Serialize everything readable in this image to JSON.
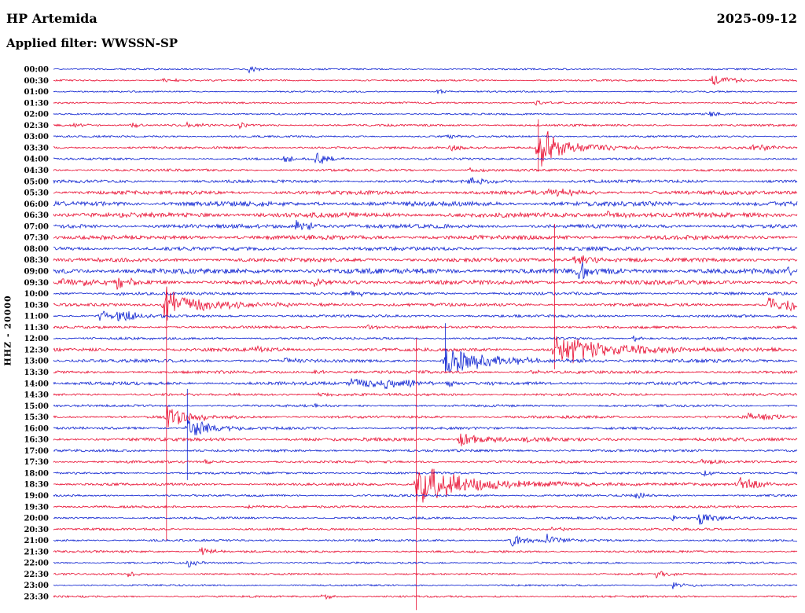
{
  "header": {
    "station": "HP Artemida",
    "date": "2025-09-12",
    "filter_label": "Applied filter: WWSSN-SP"
  },
  "axis": {
    "left_label": "HHZ - 20000"
  },
  "colors": {
    "red": "#e80c30",
    "blue": "#0a1fd0",
    "background": "#ffffff",
    "text": "#000000"
  },
  "chart_data": {
    "type": "line",
    "subtype": "helicorder-seismogram",
    "minutes_per_row": 30,
    "row_count": 48,
    "start_time": "00:00",
    "end_time": "23:30",
    "legend": "none",
    "grid": false,
    "rows": [
      {
        "label": "00:00",
        "color": "blue",
        "noise": 0.7,
        "events": [
          {
            "t": 0.262,
            "amp": 7,
            "dec": 10
          }
        ]
      },
      {
        "label": "00:30",
        "color": "red",
        "noise": 0.8,
        "events": [
          {
            "t": 0.145,
            "amp": 3,
            "dec": 20
          },
          {
            "t": 0.885,
            "amp": 8,
            "dec": 25
          }
        ]
      },
      {
        "label": "01:00",
        "color": "blue",
        "noise": 0.7,
        "events": [
          {
            "t": 0.515,
            "amp": 5,
            "dec": 8
          }
        ]
      },
      {
        "label": "01:30",
        "color": "red",
        "noise": 0.8,
        "events": [
          {
            "t": 0.648,
            "amp": 4,
            "dec": 10
          }
        ]
      },
      {
        "label": "02:00",
        "color": "blue",
        "noise": 0.8,
        "events": [
          {
            "t": 0.88,
            "amp": 4,
            "dec": 15
          }
        ]
      },
      {
        "label": "02:30",
        "color": "red",
        "noise": 1.0,
        "events": [
          {
            "t": 0.025,
            "amp": 5,
            "dec": 15
          },
          {
            "t": 0.105,
            "amp": 4,
            "dec": 12
          },
          {
            "t": 0.178,
            "amp": 5,
            "dec": 12
          },
          {
            "t": 0.25,
            "amp": 5,
            "dec": 12
          }
        ]
      },
      {
        "label": "03:00",
        "color": "blue",
        "noise": 0.9,
        "events": [
          {
            "t": 0.53,
            "amp": 3,
            "dec": 15
          }
        ]
      },
      {
        "label": "03:30",
        "color": "red",
        "noise": 1.1,
        "events": [
          {
            "t": 0.652,
            "amp": 30,
            "dec": 20,
            "su": 36,
            "sd": 30
          },
          {
            "t": 0.66,
            "amp": 7,
            "dec": 90
          },
          {
            "t": 0.53,
            "amp": 4,
            "dec": 30
          },
          {
            "t": 0.94,
            "amp": 5,
            "dec": 25
          }
        ]
      },
      {
        "label": "04:00",
        "color": "blue",
        "noise": 1.0,
        "events": [
          {
            "t": 0.309,
            "amp": 5,
            "dec": 12
          },
          {
            "t": 0.351,
            "amp": 9,
            "dec": 18
          }
        ]
      },
      {
        "label": "04:30",
        "color": "red",
        "noise": 1.1,
        "events": [
          {
            "t": 0.56,
            "amp": 3,
            "dec": 20
          }
        ]
      },
      {
        "label": "05:00",
        "color": "blue",
        "noise": 1.4,
        "events": [
          {
            "t": 0.56,
            "amp": 4,
            "dec": 25
          }
        ]
      },
      {
        "label": "05:30",
        "color": "red",
        "noise": 1.8,
        "events": [
          {
            "t": 0.665,
            "amp": 6,
            "dec": 35
          }
        ]
      },
      {
        "label": "06:00",
        "color": "blue",
        "noise": 2.2,
        "events": []
      },
      {
        "label": "06:30",
        "color": "red",
        "noise": 2.2,
        "events": [
          {
            "t": 0.742,
            "amp": 5,
            "dec": 30
          }
        ]
      },
      {
        "label": "07:00",
        "color": "blue",
        "noise": 1.8,
        "events": [
          {
            "t": 0.325,
            "amp": 8,
            "dec": 30
          }
        ]
      },
      {
        "label": "07:30",
        "color": "red",
        "noise": 2.0,
        "events": []
      },
      {
        "label": "08:00",
        "color": "blue",
        "noise": 1.7,
        "events": []
      },
      {
        "label": "08:30",
        "color": "red",
        "noise": 1.8,
        "events": [
          {
            "t": 0.7,
            "amp": 10,
            "dec": 25
          }
        ]
      },
      {
        "label": "09:00",
        "color": "blue",
        "noise": 2.4,
        "events": [
          {
            "t": 0.705,
            "amp": 12,
            "dec": 20
          },
          {
            "t": 0.98,
            "amp": 6,
            "dec": 25
          }
        ]
      },
      {
        "label": "09:30",
        "color": "red",
        "noise": 2.0,
        "events": [
          {
            "t": 0.01,
            "amp": 6,
            "dec": 30
          },
          {
            "t": 0.085,
            "amp": 9,
            "dec": 18
          },
          {
            "t": 0.35,
            "amp": 4,
            "dec": 30
          }
        ]
      },
      {
        "label": "10:00",
        "color": "blue",
        "noise": 1.3,
        "events": [
          {
            "t": 0.085,
            "amp": 4,
            "dec": 15
          },
          {
            "t": 0.4,
            "amp": 4,
            "dec": 20
          }
        ]
      },
      {
        "label": "10:30",
        "color": "red",
        "noise": 1.4,
        "events": [
          {
            "t": 0.147,
            "amp": 20,
            "dec": 35
          },
          {
            "t": 0.15,
            "amp": 6,
            "dec": 120
          },
          {
            "t": 0.96,
            "amp": 10,
            "dec": 25
          },
          {
            "t": 0.985,
            "amp": 8,
            "dec": 15
          }
        ]
      },
      {
        "label": "11:00",
        "color": "blue",
        "noise": 1.2,
        "events": [
          {
            "t": 0.062,
            "amp": 7,
            "dec": 18
          },
          {
            "t": 0.085,
            "amp": 12,
            "dec": 20
          }
        ]
      },
      {
        "label": "11:30",
        "color": "red",
        "noise": 1.2,
        "events": [
          {
            "t": 0.42,
            "amp": 3,
            "dec": 20
          }
        ]
      },
      {
        "label": "12:00",
        "color": "blue",
        "noise": 1.1,
        "events": [
          {
            "t": 0.78,
            "amp": 4,
            "dec": 10
          }
        ]
      },
      {
        "label": "12:30",
        "color": "red",
        "noise": 1.5,
        "events": [
          {
            "t": 0.674,
            "amp": 26,
            "dec": 40,
            "su": 160,
            "sd": 25
          },
          {
            "t": 0.68,
            "amp": 8,
            "dec": 150
          },
          {
            "t": 0.27,
            "amp": 4,
            "dec": 20
          }
        ]
      },
      {
        "label": "13:00",
        "color": "blue",
        "noise": 1.5,
        "events": [
          {
            "t": 0.527,
            "amp": 20,
            "dec": 45,
            "su": 48,
            "sd": 14
          },
          {
            "t": 0.535,
            "amp": 6,
            "dec": 110
          },
          {
            "t": 0.31,
            "amp": 4,
            "dec": 15
          }
        ]
      },
      {
        "label": "13:30",
        "color": "red",
        "noise": 1.3,
        "events": [
          {
            "t": 0.35,
            "amp": 4,
            "dec": 18
          },
          {
            "t": 0.64,
            "amp": 3,
            "dec": 20
          }
        ]
      },
      {
        "label": "14:00",
        "color": "blue",
        "noise": 1.5,
        "events": [
          {
            "t": 0.4,
            "amp": 7,
            "dec": 60
          },
          {
            "t": 0.445,
            "amp": 6,
            "dec": 40
          },
          {
            "t": 0.527,
            "amp": 5,
            "dec": 10
          }
        ]
      },
      {
        "label": "14:30",
        "color": "red",
        "noise": 1.2,
        "events": [
          {
            "t": 0.356,
            "amp": 6,
            "dec": 15
          }
        ]
      },
      {
        "label": "15:00",
        "color": "blue",
        "noise": 1.1,
        "events": [
          {
            "t": 0.35,
            "amp": 3,
            "dec": 15
          }
        ]
      },
      {
        "label": "15:30",
        "color": "red",
        "noise": 1.2,
        "events": [
          {
            "t": 0.152,
            "amp": 16,
            "dec": 30,
            "su": 160,
            "sd": 158
          },
          {
            "t": 0.93,
            "amp": 6,
            "dec": 30
          }
        ]
      },
      {
        "label": "16:00",
        "color": "blue",
        "noise": 1.2,
        "events": [
          {
            "t": 0.18,
            "amp": 14,
            "dec": 30,
            "su": 50,
            "sd": 66
          }
        ]
      },
      {
        "label": "16:30",
        "color": "red",
        "noise": 1.5,
        "events": [
          {
            "t": 0.545,
            "amp": 9,
            "dec": 35
          },
          {
            "t": 0.63,
            "amp": 4,
            "dec": 25
          }
        ]
      },
      {
        "label": "17:00",
        "color": "blue",
        "noise": 1.2,
        "events": []
      },
      {
        "label": "17:30",
        "color": "red",
        "noise": 1.1,
        "events": [
          {
            "t": 0.2,
            "amp": 4,
            "dec": 12
          },
          {
            "t": 0.87,
            "amp": 4,
            "dec": 15
          }
        ]
      },
      {
        "label": "18:00",
        "color": "blue",
        "noise": 1.0,
        "events": [
          {
            "t": 0.872,
            "amp": 5,
            "dec": 15
          }
        ]
      },
      {
        "label": "18:30",
        "color": "red",
        "noise": 1.2,
        "events": [
          {
            "t": 0.488,
            "amp": 26,
            "dec": 45,
            "su": 186,
            "sd": 160
          },
          {
            "t": 0.495,
            "amp": 9,
            "dec": 140
          },
          {
            "t": 0.92,
            "amp": 12,
            "dec": 22
          }
        ]
      },
      {
        "label": "19:00",
        "color": "blue",
        "noise": 1.0,
        "events": [
          {
            "t": 0.78,
            "amp": 4,
            "dec": 15
          }
        ]
      },
      {
        "label": "19:30",
        "color": "red",
        "noise": 1.0,
        "events": [
          {
            "t": 0.26,
            "amp": 3,
            "dec": 15
          }
        ]
      },
      {
        "label": "20:00",
        "color": "blue",
        "noise": 1.0,
        "events": [
          {
            "t": 0.83,
            "amp": 4,
            "dec": 15
          },
          {
            "t": 0.867,
            "amp": 10,
            "dec": 22
          }
        ]
      },
      {
        "label": "20:30",
        "color": "red",
        "noise": 1.0,
        "events": [
          {
            "t": 0.67,
            "amp": 4,
            "dec": 15
          }
        ]
      },
      {
        "label": "21:00",
        "color": "blue",
        "noise": 1.0,
        "events": [
          {
            "t": 0.615,
            "amp": 9,
            "dec": 18
          },
          {
            "t": 0.662,
            "amp": 9,
            "dec": 20
          }
        ]
      },
      {
        "label": "21:30",
        "color": "red",
        "noise": 1.0,
        "events": [
          {
            "t": 0.196,
            "amp": 7,
            "dec": 18
          }
        ]
      },
      {
        "label": "22:00",
        "color": "blue",
        "noise": 0.9,
        "events": [
          {
            "t": 0.179,
            "amp": 8,
            "dec": 10
          }
        ]
      },
      {
        "label": "22:30",
        "color": "red",
        "noise": 0.9,
        "events": [
          {
            "t": 0.1,
            "amp": 3,
            "dec": 12
          },
          {
            "t": 0.81,
            "amp": 5,
            "dec": 15
          }
        ]
      },
      {
        "label": "23:00",
        "color": "blue",
        "noise": 0.8,
        "events": [
          {
            "t": 0.832,
            "amp": 5,
            "dec": 15
          }
        ]
      },
      {
        "label": "23:30",
        "color": "red",
        "noise": 0.9,
        "events": [
          {
            "t": 0.362,
            "amp": 5,
            "dec": 12
          }
        ]
      }
    ]
  }
}
